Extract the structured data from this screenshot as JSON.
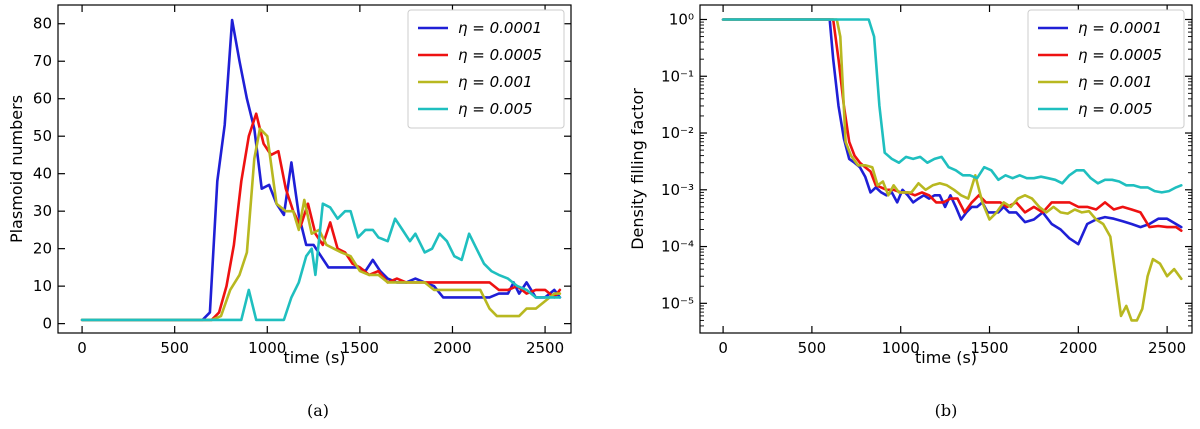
{
  "colors": {
    "s1": "#1f1fd6",
    "s2": "#ee1111",
    "s3": "#b8b820",
    "s4": "#1fbfbf"
  },
  "chart_data": [
    {
      "type": "line",
      "caption": "(a)",
      "xlabel": "time (s)",
      "ylabel": "Plasmoid numbers",
      "xlim": [
        -130,
        2640
      ],
      "ylim": [
        -2.5,
        85
      ],
      "xticks": [
        0,
        500,
        1000,
        1500,
        2000,
        2500
      ],
      "yticks": [
        0,
        10,
        20,
        30,
        40,
        50,
        60,
        70,
        80
      ],
      "ytick_labels": [
        "0",
        "10",
        "20",
        "30",
        "40",
        "50",
        "60",
        "70",
        "80"
      ],
      "yscale": "linear",
      "legend": "top-right",
      "grid": false,
      "series": [
        {
          "name": "η = 0.0001",
          "color": "#1f1fd6",
          "x": [
            0,
            650,
            690,
            730,
            770,
            810,
            850,
            890,
            930,
            970,
            1010,
            1050,
            1090,
            1130,
            1170,
            1210,
            1250,
            1290,
            1330,
            1370,
            1410,
            1450,
            1490,
            1530,
            1570,
            1610,
            1650,
            1700,
            1750,
            1800,
            1850,
            1900,
            1950,
            2000,
            2050,
            2100,
            2150,
            2200,
            2250,
            2300,
            2330,
            2360,
            2400,
            2450,
            2500,
            2550,
            2580
          ],
          "y": [
            1,
            1,
            3,
            38,
            53,
            81,
            70,
            60,
            52,
            36,
            37,
            32,
            29,
            43,
            29,
            21,
            21,
            18,
            15,
            15,
            15,
            15,
            15,
            14,
            17,
            14,
            12,
            11,
            11,
            12,
            11,
            10,
            7,
            7,
            7,
            7,
            7,
            7,
            8,
            8,
            11,
            8,
            11,
            7,
            7,
            9,
            7
          ]
        },
        {
          "name": "η = 0.0005",
          "color": "#ee1111",
          "x": [
            0,
            700,
            740,
            780,
            820,
            860,
            900,
            940,
            980,
            1020,
            1060,
            1100,
            1140,
            1180,
            1220,
            1260,
            1300,
            1340,
            1380,
            1420,
            1460,
            1500,
            1550,
            1600,
            1650,
            1700,
            1750,
            1800,
            1850,
            1900,
            1950,
            2000,
            2050,
            2100,
            2150,
            2200,
            2250,
            2300,
            2350,
            2400,
            2450,
            2500,
            2550,
            2580
          ],
          "y": [
            1,
            1,
            3,
            10,
            21,
            38,
            50,
            56,
            48,
            45,
            46,
            36,
            30,
            26,
            32,
            24,
            21,
            27,
            20,
            19,
            16,
            15,
            13,
            14,
            11,
            12,
            11,
            11,
            11,
            11,
            11,
            11,
            11,
            11,
            11,
            11,
            9,
            9,
            10,
            8,
            9,
            9,
            7,
            9
          ]
        },
        {
          "name": "η = 0.001",
          "color": "#b8b820",
          "x": [
            0,
            700,
            750,
            800,
            850,
            890,
            930,
            960,
            1000,
            1050,
            1100,
            1140,
            1170,
            1200,
            1240,
            1280,
            1320,
            1360,
            1400,
            1450,
            1500,
            1550,
            1600,
            1650,
            1700,
            1750,
            1800,
            1850,
            1900,
            1950,
            2000,
            2050,
            2100,
            2150,
            2200,
            2240,
            2280,
            2320,
            2360,
            2400,
            2450,
            2500,
            2550,
            2580
          ],
          "y": [
            1,
            1,
            2,
            9,
            13,
            19,
            44,
            52,
            50,
            32,
            30,
            30,
            25,
            33,
            24,
            25,
            21,
            20,
            19,
            18,
            14,
            13,
            13,
            11,
            11,
            11,
            11,
            11,
            9,
            9,
            9,
            9,
            9,
            9,
            4,
            2,
            2,
            2,
            2,
            4,
            4,
            6,
            8,
            8
          ]
        },
        {
          "name": "η = 0.005",
          "color": "#1fbfbf",
          "x": [
            0,
            820,
            860,
            900,
            940,
            1000,
            1050,
            1090,
            1130,
            1170,
            1210,
            1240,
            1260,
            1300,
            1340,
            1380,
            1420,
            1450,
            1490,
            1530,
            1570,
            1600,
            1650,
            1690,
            1730,
            1770,
            1800,
            1850,
            1890,
            1930,
            1970,
            2010,
            2050,
            2090,
            2130,
            2170,
            2210,
            2250,
            2300,
            2350,
            2400,
            2450,
            2500,
            2550,
            2580
          ],
          "y": [
            1,
            1,
            1,
            9,
            1,
            1,
            1,
            1,
            7,
            11,
            18,
            20,
            13,
            32,
            31,
            28,
            30,
            30,
            23,
            25,
            25,
            23,
            22,
            28,
            25,
            22,
            24,
            19,
            20,
            24,
            22,
            18,
            17,
            24,
            20,
            16,
            14,
            13,
            12,
            10,
            9,
            7,
            7,
            7,
            7
          ]
        }
      ]
    },
    {
      "type": "line",
      "caption": "(b)",
      "xlabel": "time (s)",
      "ylabel": "Density filling factor",
      "xlim": [
        -130,
        2640
      ],
      "ylim": [
        3e-06,
        1.8
      ],
      "xticks": [
        0,
        500,
        1000,
        1500,
        2000,
        2500
      ],
      "yticks": [
        1,
        0.1,
        0.01,
        0.001,
        0.0001,
        1e-05
      ],
      "ytick_labels": [
        "10⁰",
        "10⁻¹",
        "10⁻²",
        "10⁻³",
        "10⁻⁴",
        "10⁻⁵"
      ],
      "yscale": "log",
      "legend": "top-right",
      "grid": false,
      "series": [
        {
          "name": "η = 0.0001",
          "color": "#1f1fd6",
          "x": [
            0,
            600,
            620,
            650,
            680,
            710,
            740,
            770,
            800,
            830,
            860,
            890,
            920,
            950,
            980,
            1010,
            1040,
            1070,
            1100,
            1130,
            1160,
            1190,
            1220,
            1250,
            1280,
            1310,
            1340,
            1370,
            1400,
            1430,
            1460,
            1490,
            1520,
            1550,
            1580,
            1610,
            1650,
            1700,
            1750,
            1800,
            1850,
            1900,
            1950,
            2000,
            2050,
            2100,
            2150,
            2200,
            2250,
            2300,
            2350,
            2400,
            2450,
            2500,
            2550,
            2580
          ],
          "y": [
            1,
            1,
            0.2,
            0.03,
            0.008,
            0.0035,
            0.003,
            0.0025,
            0.0017,
            0.0009,
            0.0011,
            0.0009,
            0.0008,
            0.0009,
            0.0006,
            0.001,
            0.0008,
            0.0006,
            0.0007,
            0.0008,
            0.0007,
            0.0008,
            0.0008,
            0.0005,
            0.0008,
            0.0005,
            0.0003,
            0.0004,
            0.0005,
            0.0005,
            0.0006,
            0.0004,
            0.0004,
            0.0004,
            0.0005,
            0.0004,
            0.0004,
            0.00027,
            0.0003,
            0.0004,
            0.00025,
            0.0002,
            0.00014,
            0.00011,
            0.00025,
            0.0003,
            0.00033,
            0.00031,
            0.00028,
            0.00025,
            0.00022,
            0.00025,
            0.00031,
            0.00031,
            0.00025,
            0.00022
          ]
        },
        {
          "name": "η = 0.0005",
          "color": "#ee1111",
          "x": [
            0,
            620,
            650,
            680,
            710,
            740,
            770,
            800,
            830,
            860,
            890,
            920,
            960,
            1000,
            1040,
            1080,
            1120,
            1160,
            1200,
            1240,
            1280,
            1320,
            1360,
            1400,
            1440,
            1480,
            1520,
            1560,
            1600,
            1650,
            1700,
            1750,
            1800,
            1850,
            1900,
            1950,
            2000,
            2050,
            2100,
            2150,
            2200,
            2250,
            2300,
            2350,
            2400,
            2450,
            2500,
            2550,
            2580
          ],
          "y": [
            1,
            1,
            0.2,
            0.03,
            0.007,
            0.004,
            0.003,
            0.0025,
            0.0021,
            0.0012,
            0.0011,
            0.001,
            0.001,
            0.0009,
            0.0009,
            0.0008,
            0.0009,
            0.0008,
            0.0006,
            0.0006,
            0.0007,
            0.0007,
            0.0004,
            0.0006,
            0.0008,
            0.0006,
            0.0006,
            0.0006,
            0.0005,
            0.0006,
            0.0004,
            0.0005,
            0.0004,
            0.0006,
            0.0006,
            0.0006,
            0.0005,
            0.0005,
            0.00045,
            0.0006,
            0.00045,
            0.0005,
            0.00045,
            0.0004,
            0.00022,
            0.00023,
            0.00022,
            0.00022,
            0.00019
          ]
        },
        {
          "name": "η = 0.001",
          "color": "#b8b820",
          "x": [
            0,
            640,
            660,
            690,
            720,
            760,
            800,
            840,
            870,
            900,
            930,
            960,
            990,
            1020,
            1060,
            1100,
            1140,
            1180,
            1220,
            1260,
            1300,
            1340,
            1380,
            1420,
            1460,
            1500,
            1540,
            1580,
            1620,
            1660,
            1700,
            1740,
            1780,
            1820,
            1860,
            1900,
            1940,
            1980,
            2020,
            2060,
            2100,
            2140,
            2180,
            2210,
            2240,
            2270,
            2300,
            2330,
            2360,
            2390,
            2420,
            2460,
            2500,
            2540,
            2580
          ],
          "y": [
            1,
            1,
            0.5,
            0.007,
            0.004,
            0.0027,
            0.0027,
            0.0025,
            0.0012,
            0.0014,
            0.0008,
            0.0012,
            0.0009,
            0.0009,
            0.0009,
            0.0013,
            0.001,
            0.0012,
            0.0013,
            0.0012,
            0.001,
            0.0008,
            0.0007,
            0.0018,
            0.0006,
            0.0003,
            0.0004,
            0.0006,
            0.0005,
            0.0007,
            0.0008,
            0.0007,
            0.0005,
            0.0004,
            0.0005,
            0.0004,
            0.00038,
            0.00045,
            0.0004,
            0.00042,
            0.0003,
            0.00025,
            0.00015,
            3e-05,
            6e-06,
            9e-06,
            5e-06,
            5e-06,
            8e-06,
            3e-05,
            6e-05,
            5e-05,
            3e-05,
            4e-05,
            2.7e-05
          ]
        },
        {
          "name": "η = 0.005",
          "color": "#1fbfbf",
          "x": [
            0,
            820,
            850,
            880,
            910,
            950,
            990,
            1030,
            1070,
            1110,
            1150,
            1190,
            1230,
            1270,
            1310,
            1350,
            1390,
            1430,
            1470,
            1510,
            1550,
            1590,
            1630,
            1670,
            1710,
            1750,
            1790,
            1830,
            1870,
            1910,
            1950,
            1990,
            2030,
            2070,
            2110,
            2150,
            2190,
            2230,
            2270,
            2310,
            2350,
            2390,
            2430,
            2470,
            2510,
            2550,
            2580
          ],
          "y": [
            1,
            1,
            0.5,
            0.03,
            0.0045,
            0.0035,
            0.003,
            0.0038,
            0.0035,
            0.0038,
            0.003,
            0.0035,
            0.0038,
            0.0025,
            0.0022,
            0.0018,
            0.0018,
            0.0016,
            0.0025,
            0.0022,
            0.0015,
            0.0018,
            0.0016,
            0.0018,
            0.0016,
            0.0016,
            0.0017,
            0.0016,
            0.0015,
            0.0013,
            0.0018,
            0.0022,
            0.0022,
            0.0016,
            0.0013,
            0.0015,
            0.0015,
            0.0014,
            0.0012,
            0.0012,
            0.0011,
            0.0011,
            0.00095,
            0.0009,
            0.00095,
            0.0011,
            0.0012
          ]
        }
      ]
    }
  ]
}
